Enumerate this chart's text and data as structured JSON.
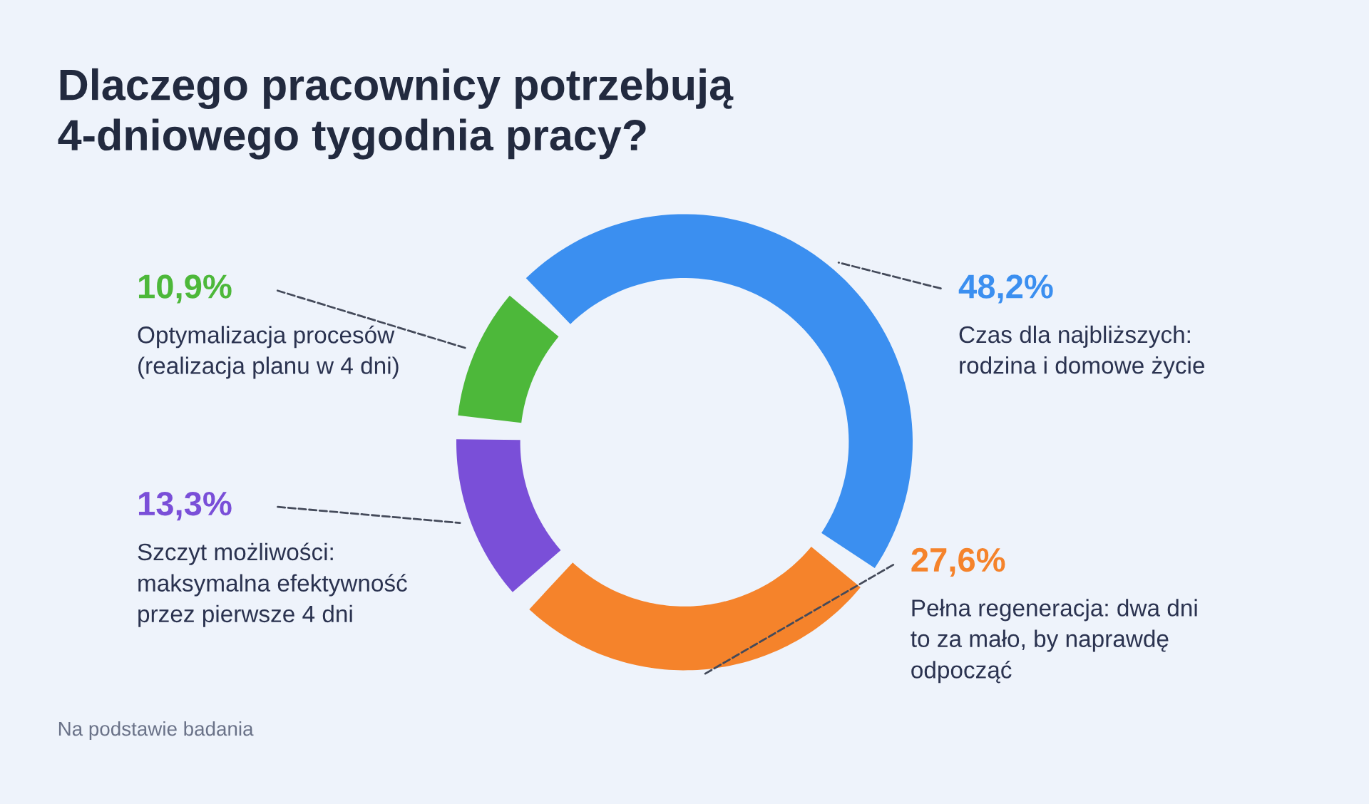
{
  "chart_data": {
    "type": "donut",
    "title": "Dlaczego pracownicy potrzebują\n4-dniowego tygodnia pracy?",
    "categories": [
      "Czas dla najbliższych:\nrodzina i domowe życie",
      "Pełna regeneracja: dwa dni\nto za mało, by naprawdę\nodpocząć",
      "Szczyt możliwości:\nmaksymalna efektywność\nprzez pierwsze 4 dni",
      "Optymalizacja procesów\n(realizacja planu w 4 dni)"
    ],
    "values": [
      48.2,
      27.6,
      13.3,
      10.9
    ],
    "value_labels": [
      "48,2%",
      "27,6%",
      "13,3%",
      "10,9%"
    ],
    "colors": [
      "#3b8ff0",
      "#f5832b",
      "#7a4fd8",
      "#4db83a"
    ],
    "annotations": [
      "Na podstawie badania"
    ]
  }
}
